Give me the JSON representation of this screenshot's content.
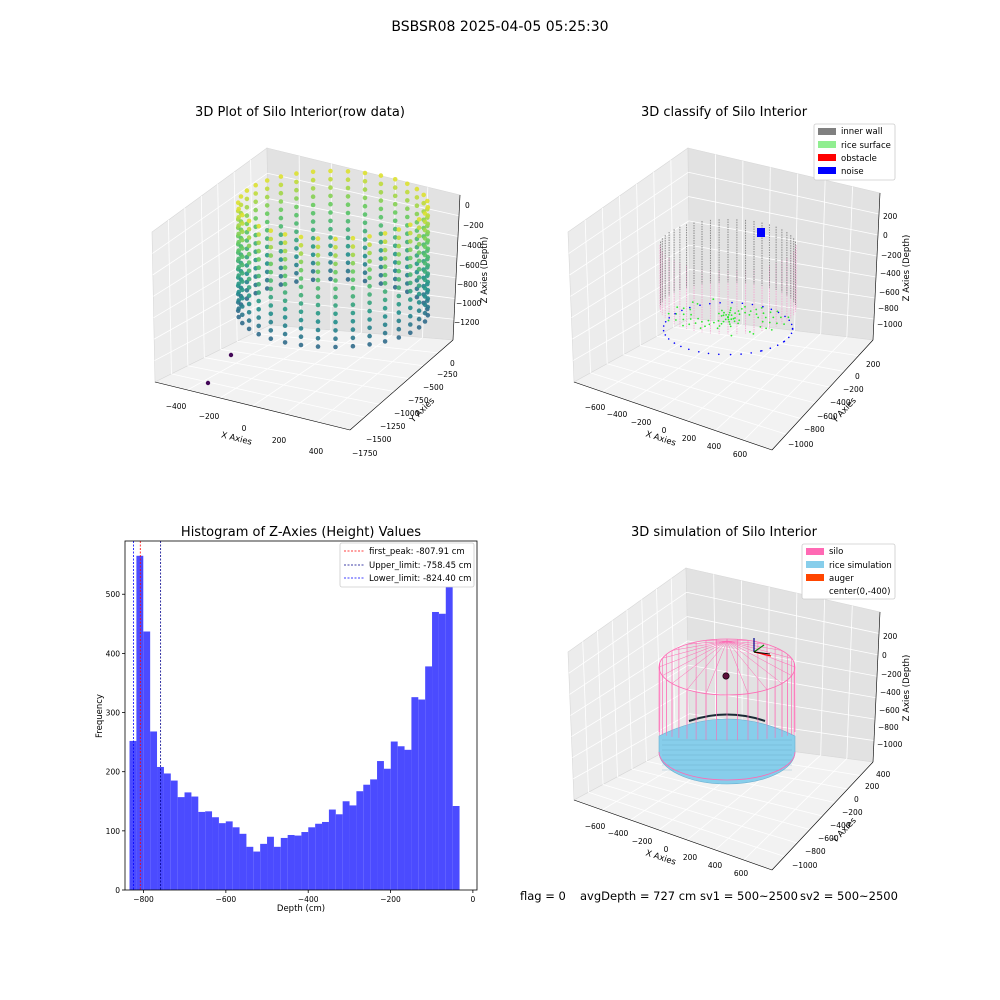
{
  "figure": {
    "title": "BSBSR08 2025-04-05 05:25:30"
  },
  "status": {
    "flag": "flag = 0",
    "avg_depth": "avgDepth = 727 cm",
    "sv1": "sv1 = 500~2500",
    "sv2": "sv2 = 500~2500"
  },
  "chart_data": [
    {
      "type": "scatter",
      "projection": "3d",
      "title": "3D Plot of Silo Interior(row data)",
      "xlabel": "X Axies",
      "ylabel": "Y Axies",
      "zlabel": "Z Axies (Depth)",
      "x_ticks": [
        "−400",
        "−200",
        "0",
        "200",
        "400"
      ],
      "y_ticks": [
        "0",
        "−250",
        "−500",
        "−750",
        "−1000",
        "−1250",
        "−1500",
        "−1750"
      ],
      "z_ticks": [
        "0",
        "−200",
        "−400",
        "−600",
        "−800",
        "−1000",
        "−1200"
      ],
      "colormap": "viridis",
      "grid": true
    },
    {
      "type": "scatter",
      "projection": "3d",
      "title": "3D classify of Silo Interior",
      "xlabel": "X Axies",
      "ylabel": "Y Axies",
      "zlabel": "Z Axies (Depth)",
      "x_ticks": [
        "−600",
        "−400",
        "−200",
        "0",
        "200",
        "400",
        "600"
      ],
      "y_ticks": [
        "200",
        "0",
        "−200",
        "−400",
        "−600",
        "−800",
        "−1000"
      ],
      "z_ticks": [
        "200",
        "0",
        "−200",
        "−400",
        "−600",
        "−800",
        "−1000"
      ],
      "legend_position": "top-right",
      "series": [
        {
          "name": "inner wall",
          "color": "#808080"
        },
        {
          "name": "rice surface",
          "color": "#90ee90"
        },
        {
          "name": "obstacle",
          "color": "#ff0000"
        },
        {
          "name": "noise",
          "color": "#0000ff"
        }
      ],
      "grid": true
    },
    {
      "type": "bar",
      "title": "Histogram of Z-Axies (Height) Values",
      "xlabel": "Depth (cm)",
      "ylabel": "Frequency",
      "xlim": [
        -845,
        10
      ],
      "ylim": [
        0,
        590
      ],
      "x_ticks": [
        -800,
        -600,
        -400,
        -200,
        0
      ],
      "x_tick_labels": [
        "−800",
        "−600",
        "−400",
        "−200",
        "0"
      ],
      "y_ticks": [
        0,
        100,
        200,
        300,
        400,
        500
      ],
      "y_tick_labels": [
        "0",
        "100",
        "200",
        "300",
        "400",
        "500"
      ],
      "bar_color": "#4b4bff",
      "bin_start": -834,
      "bin_width": 16.7,
      "values": [
        252,
        565,
        437,
        268,
        208,
        197,
        185,
        157,
        165,
        158,
        132,
        133,
        123,
        113,
        116,
        106,
        95,
        73,
        65,
        78,
        90,
        73,
        88,
        93,
        92,
        98,
        106,
        112,
        115,
        136,
        128,
        150,
        143,
        167,
        178,
        187,
        218,
        205,
        251,
        243,
        237,
        326,
        322,
        378,
        470,
        467,
        513,
        142
      ],
      "lines": [
        {
          "name": "first_peak: -807.91 cm",
          "x": -807.91,
          "color": "#ff0000"
        },
        {
          "name": "Upper_limit: -758.45 cm",
          "x": -758.45,
          "color": "#00008b"
        },
        {
          "name": "Lower_limit: -824.40 cm",
          "x": -824.4,
          "color": "#0000ff"
        }
      ],
      "legend_position": "top-right"
    },
    {
      "type": "scatter",
      "projection": "3d",
      "title": "3D simulation of Silo Interior",
      "xlabel": "X Axies",
      "ylabel": "Y Axies",
      "zlabel": "Z Axies (Depth)",
      "x_ticks": [
        "−600",
        "−400",
        "−200",
        "0",
        "200",
        "400",
        "600"
      ],
      "y_ticks": [
        "400",
        "200",
        "0",
        "−200",
        "−400",
        "−600",
        "−800",
        "−1000"
      ],
      "z_ticks": [
        "200",
        "0",
        "−200",
        "−400",
        "−600",
        "−800",
        "−1000"
      ],
      "legend_position": "top-right",
      "series": [
        {
          "name": "silo",
          "color": "#ff69b4"
        },
        {
          "name": "rice simulation",
          "color": "#87ceeb"
        },
        {
          "name": "auger",
          "color": "#ff4500"
        },
        {
          "name": "center(0,-400)",
          "color": "#ffffff"
        }
      ],
      "grid": true
    }
  ]
}
